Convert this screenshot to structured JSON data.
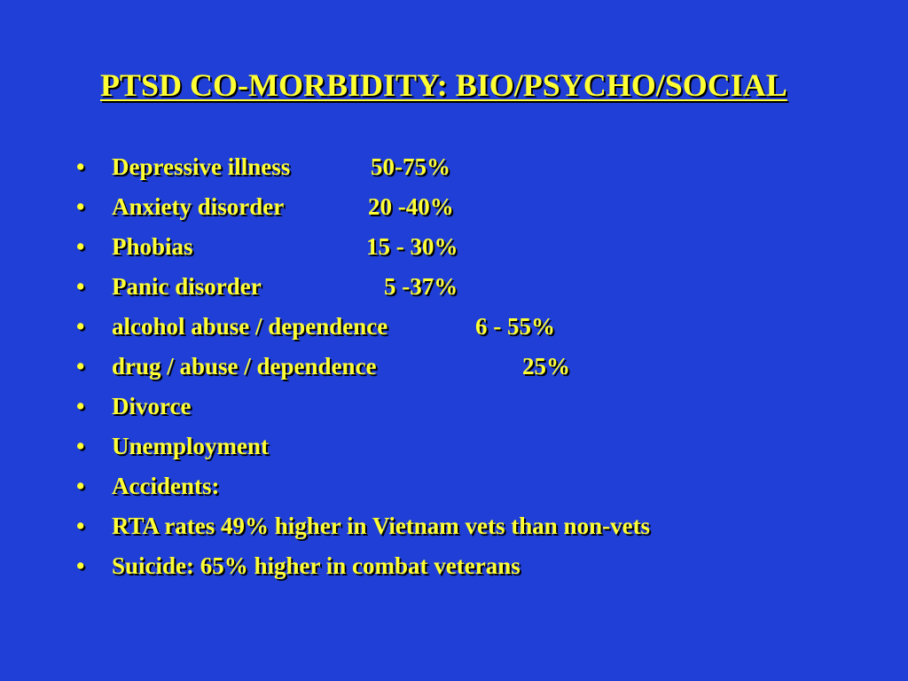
{
  "slide": {
    "title": "PTSD CO-MORBIDITY: BIO/PSYCHO/SOCIAL",
    "bullet_char": "•",
    "items": [
      {
        "label": "Depressive illness",
        "value": "50-75%"
      },
      {
        "label": "Anxiety disorder",
        "value": "20 -40%"
      },
      {
        "label": "Phobias",
        "value": "15 - 30%"
      },
      {
        "label": "Panic disorder",
        "value": "5 -37%"
      },
      {
        "label": "alcohol abuse / dependence",
        "value": "6 - 55%"
      },
      {
        "label": "drug / abuse / dependence",
        "value": "25%"
      },
      {
        "label": "Divorce",
        "value": ""
      },
      {
        "label": "Unemployment",
        "value": ""
      },
      {
        "label": "Accidents:",
        "value": ""
      },
      {
        "label": "RTA rates 49% higher in Vietnam vets than non-vets",
        "value": ""
      },
      {
        "label": "Suicide: 65% higher in combat veterans",
        "value": ""
      }
    ],
    "colors": {
      "background": "#1f3fd6",
      "text": "#ffff33",
      "shadow": "#000000"
    }
  }
}
